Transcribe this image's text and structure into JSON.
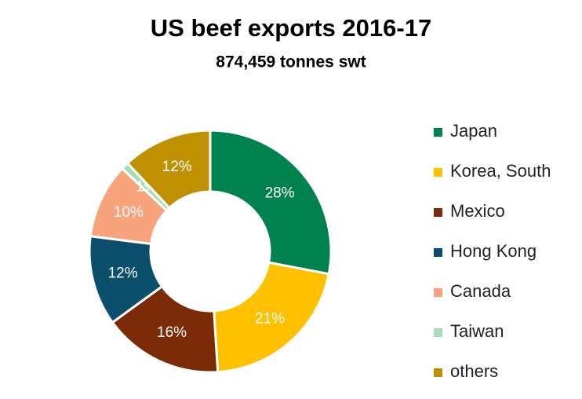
{
  "chart_data": {
    "type": "donut",
    "title": "US beef exports 2016-17",
    "subtitle": "874,459 tonnes swt",
    "categories": [
      "Japan",
      "Korea, South",
      "Mexico",
      "Hong Kong",
      "Canada",
      "Taiwan",
      "others"
    ],
    "values": [
      28,
      21,
      16,
      12,
      10,
      1,
      12
    ],
    "value_labels": [
      "28%",
      "21%",
      "16%",
      "12%",
      "10%",
      "1%",
      "12%"
    ],
    "colors": [
      "#00824f",
      "#ffc000",
      "#7b2c06",
      "#0b4f6c",
      "#f7a47d",
      "#a9dbb8",
      "#bf9000"
    ],
    "legend": "right"
  }
}
